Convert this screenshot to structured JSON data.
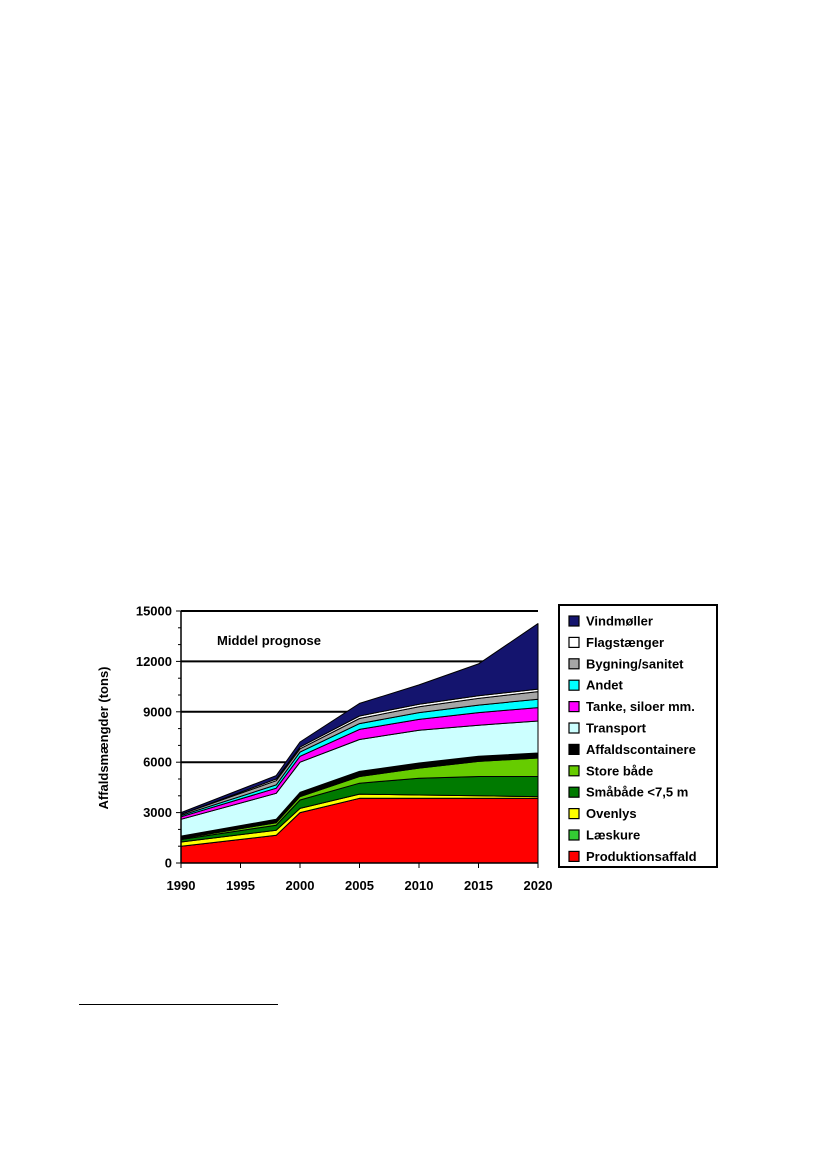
{
  "chart_data": {
    "type": "area",
    "stacked": true,
    "title": "",
    "annotation": "Middel prognose",
    "xlabel": "",
    "ylabel": "Affaldsmængder (tons)",
    "x": [
      1990,
      1998,
      2000,
      2005,
      2010,
      2015,
      2020
    ],
    "xticks": [
      "1990",
      "1995",
      "2000",
      "2005",
      "2010",
      "2015",
      "2020"
    ],
    "xlim": [
      1990,
      2020
    ],
    "ylim": [
      0,
      15000
    ],
    "yticks": [
      "0",
      "3000",
      "6000",
      "9000",
      "12000",
      "15000"
    ],
    "gridlines": [
      6000,
      9000,
      12000,
      15000
    ],
    "legend_position": "right",
    "series": [
      {
        "name": "Produktionsaffald",
        "color": "#ff0000",
        "values": [
          1000,
          1650,
          3000,
          3850,
          3850,
          3850,
          3850
        ]
      },
      {
        "name": "Læskure",
        "color": "#33cc33",
        "values": [
          0,
          0,
          0,
          0,
          0,
          0,
          0
        ]
      },
      {
        "name": "Ovenlys",
        "color": "#ffff00",
        "values": [
          250,
          300,
          250,
          250,
          200,
          150,
          100
        ]
      },
      {
        "name": "Småbåde <7,5 m",
        "color": "#007a00",
        "values": [
          150,
          300,
          500,
          650,
          1000,
          1150,
          1200
        ]
      },
      {
        "name": "Store både",
        "color": "#66cc00",
        "values": [
          50,
          150,
          200,
          400,
          600,
          900,
          1100
        ]
      },
      {
        "name": "Affaldscontainere",
        "color": "#000000",
        "values": [
          150,
          200,
          250,
          300,
          300,
          300,
          300
        ]
      },
      {
        "name": "Transport",
        "color": "#ccffff",
        "values": [
          1000,
          1550,
          1800,
          1900,
          1950,
          1850,
          1900
        ]
      },
      {
        "name": "Tanke, siloer mm.",
        "color": "#ff00ff",
        "values": [
          150,
          300,
          350,
          600,
          650,
          750,
          800
        ]
      },
      {
        "name": "Andet",
        "color": "#00ffff",
        "values": [
          80,
          200,
          250,
          350,
          400,
          450,
          500
        ]
      },
      {
        "name": "Bygning/sanitet",
        "color": "#a6a6a6",
        "values": [
          70,
          250,
          200,
          300,
          350,
          400,
          450
        ]
      },
      {
        "name": "Flagstænger",
        "color": "#ffffff",
        "values": [
          0,
          100,
          100,
          150,
          150,
          150,
          150
        ]
      },
      {
        "name": "Vindmøller",
        "color": "#14146e",
        "values": [
          100,
          200,
          300,
          750,
          1150,
          1900,
          3900
        ]
      }
    ]
  }
}
